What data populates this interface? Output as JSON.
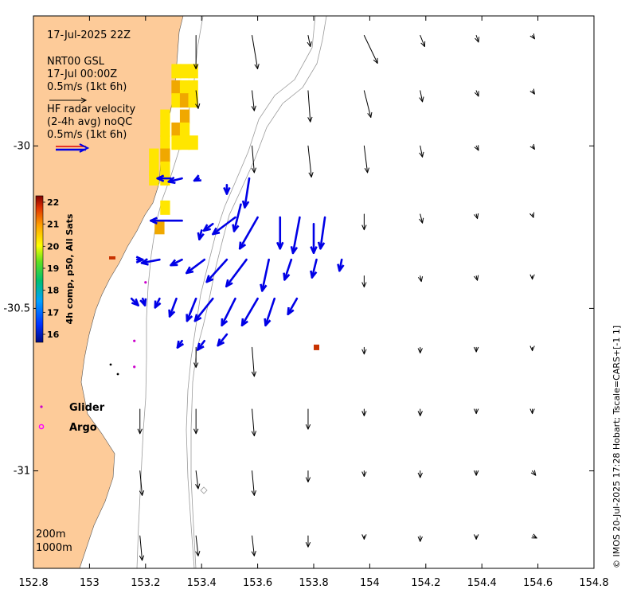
{
  "map": {
    "timestamp": "17-Jul-2025 22Z",
    "model_block": [
      "NRT00 GSL",
      "17-Jul 00:00Z",
      "0.5m/s (1kt 6h)"
    ],
    "radar_block": [
      "HF radar velocity",
      "(2-4h avg) noQC",
      "0.5m/s (1kt 6h)"
    ],
    "depth_labels": [
      "200m",
      "1000m"
    ],
    "credit": "© IMOS 20-Jul-2025 17:28 Hobart; Tscale=CARS+[-1 1]",
    "x_ticks": [
      "152.8",
      "153",
      "153.2",
      "153.4",
      "153.6",
      "153.8",
      "154",
      "154.2",
      "154.4",
      "154.6",
      "154.8"
    ],
    "y_ticks": [
      "-30",
      "-30.5",
      "-31"
    ],
    "colorbar": {
      "label": "4h comp, p50, All Sats",
      "ticks": [
        "16",
        "17",
        "18",
        "19",
        "20",
        "21",
        "22"
      ]
    },
    "legend": {
      "glider": "Glider",
      "argo": "Argo",
      "glider_color": "#cc00cc",
      "argo_color": "#ff00ff"
    },
    "colors": {
      "land": "#fdcb99",
      "radar_arrow": "#0000e6",
      "model_arrow": "#000000",
      "contour": "#9a9a9a",
      "sst_warm": "#ffe600",
      "sst_hot": "#f0a800",
      "sst_red": "#c83200"
    }
  },
  "chart_data": {
    "type": "map",
    "lon_range": [
      152.8,
      154.8
    ],
    "lat_range": [
      -31.3,
      -29.6
    ],
    "model_vectors": [
      {
        "lon": 153.38,
        "lat": -29.66,
        "u": 0.0,
        "v": -0.3
      },
      {
        "lon": 153.58,
        "lat": -29.66,
        "u": 0.05,
        "v": -0.3
      },
      {
        "lon": 153.78,
        "lat": -29.66,
        "u": 0.02,
        "v": -0.1
      },
      {
        "lon": 153.98,
        "lat": -29.66,
        "u": 0.12,
        "v": -0.25
      },
      {
        "lon": 154.18,
        "lat": -29.66,
        "u": 0.04,
        "v": -0.1
      },
      {
        "lon": 154.38,
        "lat": -29.66,
        "u": 0.02,
        "v": -0.06
      },
      {
        "lon": 154.58,
        "lat": -29.66,
        "u": 0.02,
        "v": -0.03
      },
      {
        "lon": 153.38,
        "lat": -29.83,
        "u": 0.02,
        "v": -0.16
      },
      {
        "lon": 153.58,
        "lat": -29.83,
        "u": 0.02,
        "v": -0.18
      },
      {
        "lon": 153.78,
        "lat": -29.83,
        "u": 0.02,
        "v": -0.28
      },
      {
        "lon": 153.98,
        "lat": -29.83,
        "u": 0.06,
        "v": -0.24
      },
      {
        "lon": 154.18,
        "lat": -29.83,
        "u": 0.02,
        "v": -0.1
      },
      {
        "lon": 154.38,
        "lat": -29.83,
        "u": 0.02,
        "v": -0.05
      },
      {
        "lon": 154.58,
        "lat": -29.83,
        "u": 0.02,
        "v": -0.03
      },
      {
        "lon": 153.58,
        "lat": -30.0,
        "u": 0.02,
        "v": -0.24
      },
      {
        "lon": 153.78,
        "lat": -30.0,
        "u": 0.03,
        "v": -0.28
      },
      {
        "lon": 153.98,
        "lat": -30.0,
        "u": 0.03,
        "v": -0.24
      },
      {
        "lon": 154.18,
        "lat": -30.0,
        "u": 0.02,
        "v": -0.1
      },
      {
        "lon": 154.38,
        "lat": -30.0,
        "u": 0.02,
        "v": -0.04
      },
      {
        "lon": 154.58,
        "lat": -30.0,
        "u": 0.02,
        "v": -0.03
      },
      {
        "lon": 153.98,
        "lat": -30.21,
        "u": 0.0,
        "v": -0.14
      },
      {
        "lon": 154.18,
        "lat": -30.21,
        "u": 0.02,
        "v": -0.08
      },
      {
        "lon": 154.38,
        "lat": -30.21,
        "u": 0.01,
        "v": -0.04
      },
      {
        "lon": 154.58,
        "lat": -30.21,
        "u": 0.01,
        "v": -0.03
      },
      {
        "lon": 153.98,
        "lat": -30.4,
        "u": 0.0,
        "v": -0.1
      },
      {
        "lon": 154.18,
        "lat": -30.4,
        "u": 0.01,
        "v": -0.05
      },
      {
        "lon": 154.38,
        "lat": -30.4,
        "u": 0.01,
        "v": -0.04
      },
      {
        "lon": 154.58,
        "lat": -30.4,
        "u": 0.0,
        "v": -0.03
      },
      {
        "lon": 153.38,
        "lat": -30.62,
        "u": 0.0,
        "v": -0.18
      },
      {
        "lon": 153.58,
        "lat": -30.62,
        "u": 0.02,
        "v": -0.26
      },
      {
        "lon": 153.98,
        "lat": -30.62,
        "u": 0.0,
        "v": -0.06
      },
      {
        "lon": 154.18,
        "lat": -30.62,
        "u": 0.0,
        "v": -0.05
      },
      {
        "lon": 154.38,
        "lat": -30.62,
        "u": 0.0,
        "v": -0.04
      },
      {
        "lon": 154.58,
        "lat": -30.62,
        "u": 0.0,
        "v": -0.03
      },
      {
        "lon": 153.18,
        "lat": -30.81,
        "u": 0.0,
        "v": -0.22
      },
      {
        "lon": 153.38,
        "lat": -30.81,
        "u": 0.0,
        "v": -0.22
      },
      {
        "lon": 153.58,
        "lat": -30.81,
        "u": 0.02,
        "v": -0.24
      },
      {
        "lon": 153.78,
        "lat": -30.81,
        "u": 0.0,
        "v": -0.18
      },
      {
        "lon": 153.98,
        "lat": -30.81,
        "u": 0.0,
        "v": -0.06
      },
      {
        "lon": 154.18,
        "lat": -30.81,
        "u": 0.0,
        "v": -0.06
      },
      {
        "lon": 154.38,
        "lat": -30.81,
        "u": 0.0,
        "v": -0.04
      },
      {
        "lon": 154.58,
        "lat": -30.81,
        "u": 0.0,
        "v": -0.04
      },
      {
        "lon": 153.18,
        "lat": -31.0,
        "u": 0.02,
        "v": -0.22
      },
      {
        "lon": 153.38,
        "lat": -31.0,
        "u": 0.02,
        "v": -0.16
      },
      {
        "lon": 153.58,
        "lat": -31.0,
        "u": 0.02,
        "v": -0.22
      },
      {
        "lon": 153.78,
        "lat": -31.0,
        "u": 0.0,
        "v": -0.1
      },
      {
        "lon": 153.98,
        "lat": -31.0,
        "u": 0.0,
        "v": -0.05
      },
      {
        "lon": 154.18,
        "lat": -31.0,
        "u": 0.0,
        "v": -0.06
      },
      {
        "lon": 154.38,
        "lat": -31.0,
        "u": 0.0,
        "v": -0.04
      },
      {
        "lon": 154.58,
        "lat": -31.0,
        "u": 0.03,
        "v": -0.04
      },
      {
        "lon": 153.18,
        "lat": -31.2,
        "u": 0.02,
        "v": -0.22
      },
      {
        "lon": 153.38,
        "lat": -31.2,
        "u": 0.02,
        "v": -0.18
      },
      {
        "lon": 153.58,
        "lat": -31.2,
        "u": 0.02,
        "v": -0.18
      },
      {
        "lon": 153.78,
        "lat": -31.2,
        "u": 0.0,
        "v": -0.1
      },
      {
        "lon": 153.98,
        "lat": -31.2,
        "u": 0.0,
        "v": -0.03
      },
      {
        "lon": 154.18,
        "lat": -31.2,
        "u": 0.0,
        "v": -0.05
      },
      {
        "lon": 154.38,
        "lat": -31.2,
        "u": 0.0,
        "v": -0.03
      },
      {
        "lon": 154.58,
        "lat": -31.2,
        "u": 0.04,
        "v": -0.02
      }
    ],
    "radar_vectors": [
      {
        "lon": 153.29,
        "lat": -30.1,
        "u": -0.12,
        "v": 0.0
      },
      {
        "lon": 153.33,
        "lat": -30.1,
        "u": -0.12,
        "v": -0.03
      },
      {
        "lon": 153.39,
        "lat": -30.1,
        "u": -0.04,
        "v": -0.02
      },
      {
        "lon": 153.49,
        "lat": -30.12,
        "u": 0.0,
        "v": -0.08
      },
      {
        "lon": 153.57,
        "lat": -30.1,
        "u": -0.04,
        "v": -0.26
      },
      {
        "lon": 153.54,
        "lat": -30.18,
        "u": -0.06,
        "v": -0.24
      },
      {
        "lon": 153.33,
        "lat": -30.23,
        "u": -0.28,
        "v": 0.0
      },
      {
        "lon": 153.4,
        "lat": -30.26,
        "u": -0.02,
        "v": -0.08
      },
      {
        "lon": 153.44,
        "lat": -30.24,
        "u": -0.08,
        "v": -0.06
      },
      {
        "lon": 153.52,
        "lat": -30.22,
        "u": -0.2,
        "v": -0.15
      },
      {
        "lon": 153.6,
        "lat": -30.22,
        "u": -0.16,
        "v": -0.28
      },
      {
        "lon": 153.68,
        "lat": -30.22,
        "u": 0.0,
        "v": -0.28
      },
      {
        "lon": 153.75,
        "lat": -30.22,
        "u": -0.06,
        "v": -0.32
      },
      {
        "lon": 153.8,
        "lat": -30.24,
        "u": 0.0,
        "v": -0.26
      },
      {
        "lon": 153.84,
        "lat": -30.22,
        "u": -0.04,
        "v": -0.28
      },
      {
        "lon": 153.17,
        "lat": -30.35,
        "u": 0.05,
        "v": 0.0
      },
      {
        "lon": 153.25,
        "lat": -30.35,
        "u": -0.16,
        "v": -0.03
      },
      {
        "lon": 153.33,
        "lat": -30.35,
        "u": -0.1,
        "v": -0.05
      },
      {
        "lon": 153.41,
        "lat": -30.35,
        "u": -0.16,
        "v": -0.12
      },
      {
        "lon": 153.49,
        "lat": -30.35,
        "u": -0.18,
        "v": -0.2
      },
      {
        "lon": 153.56,
        "lat": -30.35,
        "u": -0.18,
        "v": -0.24
      },
      {
        "lon": 153.64,
        "lat": -30.35,
        "u": -0.06,
        "v": -0.28
      },
      {
        "lon": 153.72,
        "lat": -30.35,
        "u": -0.06,
        "v": -0.18
      },
      {
        "lon": 153.81,
        "lat": -30.35,
        "u": -0.04,
        "v": -0.16
      },
      {
        "lon": 153.9,
        "lat": -30.35,
        "u": -0.02,
        "v": -0.1
      },
      {
        "lon": 153.15,
        "lat": -30.47,
        "u": 0.06,
        "v": -0.06
      },
      {
        "lon": 153.19,
        "lat": -30.47,
        "u": 0.02,
        "v": -0.06
      },
      {
        "lon": 153.25,
        "lat": -30.47,
        "u": -0.04,
        "v": -0.08
      },
      {
        "lon": 153.31,
        "lat": -30.47,
        "u": -0.06,
        "v": -0.16
      },
      {
        "lon": 153.38,
        "lat": -30.47,
        "u": -0.08,
        "v": -0.2
      },
      {
        "lon": 153.44,
        "lat": -30.47,
        "u": -0.16,
        "v": -0.2
      },
      {
        "lon": 153.52,
        "lat": -30.47,
        "u": -0.12,
        "v": -0.24
      },
      {
        "lon": 153.6,
        "lat": -30.47,
        "u": -0.14,
        "v": -0.24
      },
      {
        "lon": 153.66,
        "lat": -30.47,
        "u": -0.08,
        "v": -0.24
      },
      {
        "lon": 153.74,
        "lat": -30.47,
        "u": -0.08,
        "v": -0.14
      },
      {
        "lon": 153.33,
        "lat": -30.6,
        "u": -0.04,
        "v": -0.06
      },
      {
        "lon": 153.41,
        "lat": -30.6,
        "u": -0.06,
        "v": -0.08
      },
      {
        "lon": 153.49,
        "lat": -30.58,
        "u": -0.08,
        "v": -0.1
      }
    ],
    "sst_cells": [
      {
        "lon": 153.31,
        "lat": -29.77,
        "t": 20.0
      },
      {
        "lon": 153.34,
        "lat": -29.77,
        "t": 20.0
      },
      {
        "lon": 153.37,
        "lat": -29.77,
        "t": 20.0
      },
      {
        "lon": 153.31,
        "lat": -29.82,
        "t": 20.4
      },
      {
        "lon": 153.34,
        "lat": -29.82,
        "t": 20.0
      },
      {
        "lon": 153.37,
        "lat": -29.82,
        "t": 20.0
      },
      {
        "lon": 153.31,
        "lat": -29.86,
        "t": 20.0
      },
      {
        "lon": 153.34,
        "lat": -29.86,
        "t": 20.4
      },
      {
        "lon": 153.37,
        "lat": -29.86,
        "t": 20.0
      },
      {
        "lon": 153.34,
        "lat": -29.91,
        "t": 20.6
      },
      {
        "lon": 153.27,
        "lat": -29.91,
        "t": 20.0
      },
      {
        "lon": 153.27,
        "lat": -29.95,
        "t": 20.0
      },
      {
        "lon": 153.31,
        "lat": -29.95,
        "t": 20.4
      },
      {
        "lon": 153.34,
        "lat": -29.95,
        "t": 20.0
      },
      {
        "lon": 153.27,
        "lat": -29.99,
        "t": 20.0
      },
      {
        "lon": 153.31,
        "lat": -29.99,
        "t": 20.0
      },
      {
        "lon": 153.34,
        "lat": -29.99,
        "t": 20.2
      },
      {
        "lon": 153.37,
        "lat": -29.99,
        "t": 20.0
      },
      {
        "lon": 153.23,
        "lat": -30.03,
        "t": 20.0
      },
      {
        "lon": 153.27,
        "lat": -30.03,
        "t": 20.5
      },
      {
        "lon": 153.23,
        "lat": -30.07,
        "t": 20.0
      },
      {
        "lon": 153.27,
        "lat": -30.07,
        "t": 20.0
      },
      {
        "lon": 153.23,
        "lat": -30.1,
        "t": 20.3
      },
      {
        "lon": 153.27,
        "lat": -30.1,
        "t": 20.0
      },
      {
        "lon": 153.27,
        "lat": -30.19,
        "t": 20.0
      },
      {
        "lon": 153.25,
        "lat": -30.25,
        "t": 20.5
      },
      {
        "lon": 153.81,
        "lat": -30.62,
        "t": 21.8
      }
    ],
    "glider_points": [
      {
        "lon": 153.16,
        "lat": -30.6
      },
      {
        "lon": 153.16,
        "lat": -30.68
      },
      {
        "lon": 153.2,
        "lat": -30.42
      }
    ]
  }
}
